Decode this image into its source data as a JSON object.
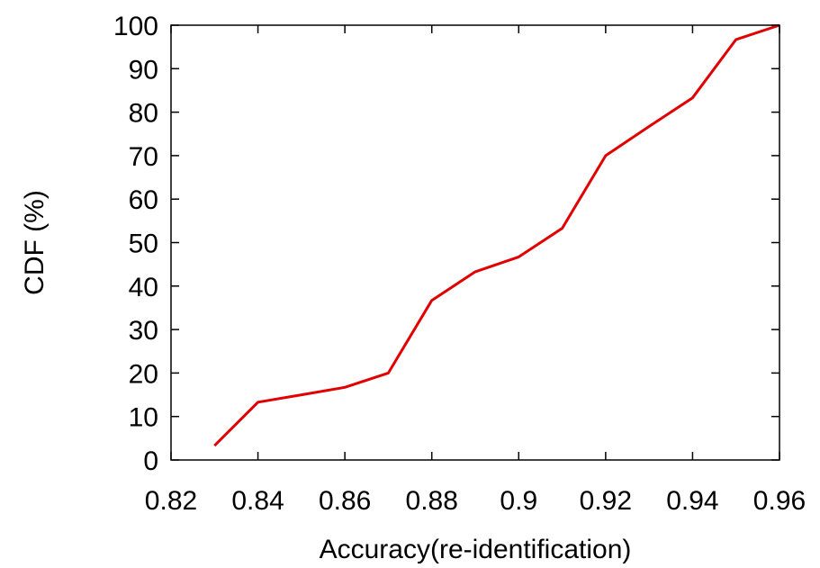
{
  "chart_data": {
    "type": "line",
    "title": "",
    "xlabel": "Accuracy(re-identification)",
    "ylabel": "CDF (%)",
    "xlim": [
      0.82,
      0.96
    ],
    "ylim": [
      0,
      100
    ],
    "x_ticks": [
      "0.82",
      "0.84",
      "0.86",
      "0.88",
      "0.9",
      "0.92",
      "0.94",
      "0.96"
    ],
    "y_ticks": [
      "0",
      "10",
      "20",
      "30",
      "40",
      "50",
      "60",
      "70",
      "80",
      "90",
      "100"
    ],
    "grid": false,
    "legend": "none",
    "series": [
      {
        "color": "#e00000",
        "x": [
          0.83,
          0.84,
          0.85,
          0.86,
          0.87,
          0.88,
          0.89,
          0.9,
          0.91,
          0.92,
          0.93,
          0.94,
          0.95,
          0.96
        ],
        "y": [
          3.3,
          13.3,
          15.0,
          16.7,
          20.0,
          36.7,
          43.3,
          46.7,
          53.3,
          70.0,
          76.7,
          83.3,
          96.7,
          100.0
        ]
      }
    ]
  }
}
